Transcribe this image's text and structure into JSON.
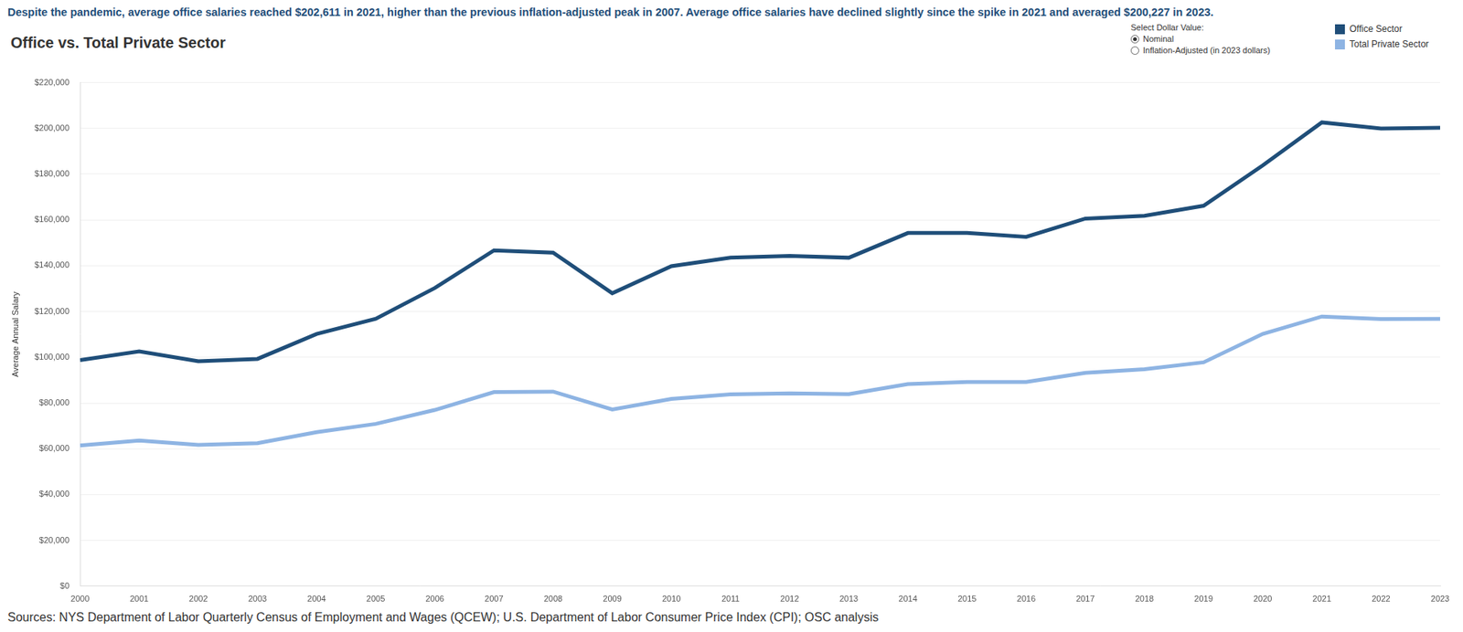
{
  "chart_data": {
    "type": "line",
    "subtitle": "Despite the pandemic, average office salaries reached $202,611 in 2021, higher than the previous inflation-adjusted peak in 2007. Average office salaries have declined slightly since the spike in 2021 and averaged $200,227 in 2023.",
    "title": "Office vs. Total Private Sector",
    "y_label": "Average Annual Salary",
    "source": "Sources: NYS Department of Labor Quarterly Census of Employment and Wages (QCEW); U.S. Department of Labor Consumer Price Index (CPI); OSC analysis",
    "selector": {
      "label": "Select Dollar Value:",
      "options": [
        "Nominal",
        "Inflation-Adjusted (in 2023 dollars)"
      ],
      "selected": "Nominal"
    },
    "categories": [
      "2000",
      "2001",
      "2002",
      "2003",
      "2004",
      "2005",
      "2006",
      "2007",
      "2008",
      "2009",
      "2010",
      "2011",
      "2012",
      "2013",
      "2014",
      "2015",
      "2016",
      "2017",
      "2018",
      "2019",
      "2020",
      "2021",
      "2022",
      "2023"
    ],
    "series": [
      {
        "name": "Office Sector",
        "color": "#1f4e79",
        "values": [
          98800,
          102600,
          98300,
          99300,
          110200,
          116800,
          130300,
          146700,
          145700,
          128000,
          139800,
          143500,
          144300,
          143500,
          154300,
          154300,
          152600,
          160600,
          161800,
          166200,
          183800,
          202611,
          199900,
          200227
        ]
      },
      {
        "name": "Total Private Sector",
        "color": "#8eb4e3",
        "values": [
          61500,
          63600,
          61700,
          62500,
          67300,
          70900,
          77000,
          84800,
          85000,
          77200,
          81800,
          83800,
          84200,
          83900,
          88300,
          89200,
          89200,
          93200,
          94800,
          97800,
          110200,
          117800,
          116700,
          116800
        ]
      }
    ],
    "ylim": [
      0,
      220000
    ],
    "yticks": [
      {
        "value": 0,
        "label": "$0"
      },
      {
        "value": 20000,
        "label": "$20,000"
      },
      {
        "value": 40000,
        "label": "$40,000"
      },
      {
        "value": 60000,
        "label": "$60,000"
      },
      {
        "value": 80000,
        "label": "$80,000"
      },
      {
        "value": 100000,
        "label": "$100,000"
      },
      {
        "value": 120000,
        "label": "$120,000"
      },
      {
        "value": 140000,
        "label": "$140,000"
      },
      {
        "value": 160000,
        "label": "$160,000"
      },
      {
        "value": 180000,
        "label": "$180,000"
      },
      {
        "value": 200000,
        "label": "$200,000"
      },
      {
        "value": 220000,
        "label": "$220,000"
      }
    ],
    "grid": true,
    "legend": "top-right"
  }
}
